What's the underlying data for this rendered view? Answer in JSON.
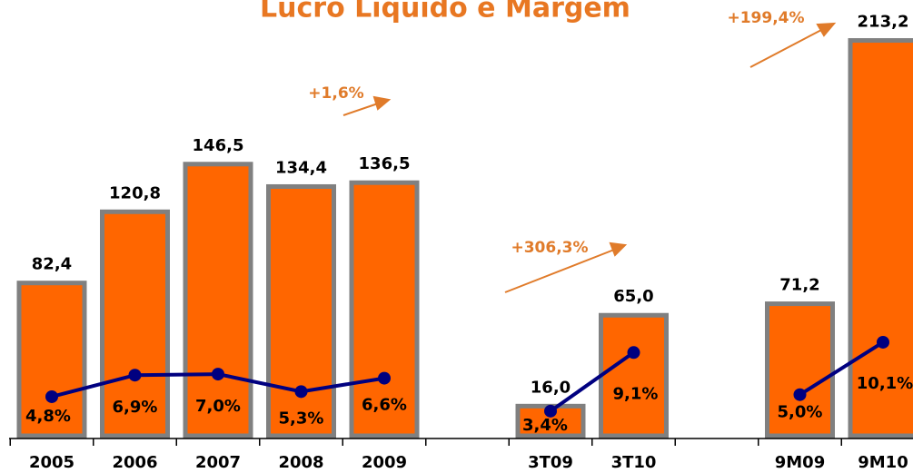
{
  "chart_data": {
    "type": "bar",
    "title": "Lucro Líquido  e Margem",
    "categories": [
      "2005",
      "2006",
      "2007",
      "2008",
      "2009",
      null,
      "3T09",
      "3T10",
      null,
      "9M09",
      "9M10"
    ],
    "series": [
      {
        "type": "bar",
        "color": "#ff6600",
        "values": [
          82.4,
          120.8,
          146.5,
          134.4,
          136.5,
          null,
          16.0,
          65.0,
          null,
          71.2,
          213.2
        ],
        "value_labels": [
          "82,4",
          "120,8",
          "146,5",
          "134,4",
          "136,5",
          null,
          "16,0",
          "65,0",
          null,
          "71,2",
          "213,2"
        ]
      },
      {
        "type": "line",
        "axis": "y2",
        "color": "#000080",
        "values": [
          4.8,
          6.9,
          7.0,
          5.3,
          6.6,
          null,
          3.4,
          9.1,
          null,
          5.0,
          10.1
        ],
        "value_labels": [
          "4,8%",
          "6,9%",
          "7,0%",
          "5,3%",
          "6,6%",
          null,
          "3,4%",
          "9,1%",
          null,
          "5,0%",
          "10,1%"
        ]
      }
    ],
    "ylim": [
      0,
      235
    ],
    "y2lim": [
      1,
      43.4
    ],
    "annotations": [
      "+1,6%",
      "+306,3%",
      "+199,4%"
    ]
  }
}
